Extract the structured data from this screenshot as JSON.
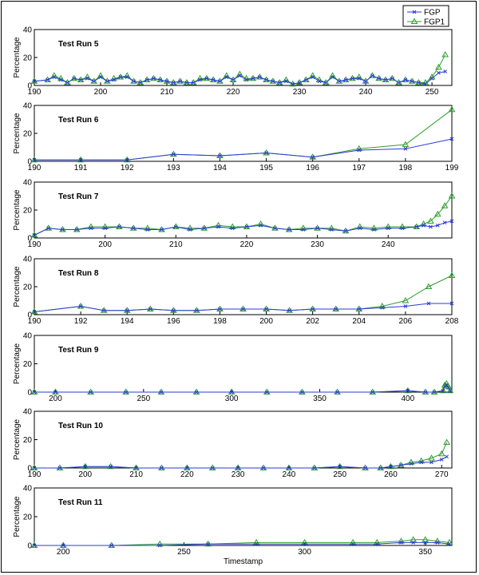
{
  "legend": {
    "items": [
      {
        "name": "FGP",
        "color": "#2b3bd6",
        "marker": "x"
      },
      {
        "name": "FGP1",
        "color": "#2f9e2f",
        "marker": "triangle"
      }
    ]
  },
  "chart_data": [
    {
      "type": "line",
      "title": "Test Run 5",
      "ylabel": "Percentage",
      "xlabel": "",
      "xlim": [
        190,
        253
      ],
      "ylim": [
        0,
        40
      ],
      "xticks": [
        190,
        200,
        210,
        220,
        230,
        240,
        250
      ],
      "yticks": [
        0,
        20,
        40
      ],
      "series": [
        {
          "name": "FGP",
          "x": [
            190,
            192,
            193,
            194,
            195,
            196,
            197,
            198,
            199,
            200,
            201,
            202,
            203,
            204,
            205,
            206,
            207,
            208,
            209,
            210,
            211,
            212,
            213,
            214,
            215,
            216,
            217,
            218,
            219,
            220,
            221,
            222,
            223,
            224,
            225,
            226,
            227,
            228,
            229,
            230,
            231,
            232,
            233,
            234,
            235,
            236,
            237,
            238,
            239,
            240,
            241,
            242,
            243,
            244,
            245,
            246,
            247,
            248,
            249,
            250,
            251,
            252
          ],
          "y": [
            3,
            4,
            6,
            4,
            2,
            5,
            4,
            5,
            3,
            6,
            3,
            4,
            6,
            6,
            3,
            2,
            4,
            5,
            4,
            3,
            2,
            3,
            2,
            2,
            4,
            5,
            4,
            3,
            6,
            4,
            7,
            4,
            5,
            6,
            4,
            3,
            2,
            3,
            1,
            2,
            4,
            6,
            3,
            2,
            6,
            3,
            4,
            5,
            5,
            3,
            7,
            5,
            4,
            5,
            2,
            4,
            3,
            2,
            1,
            5,
            9,
            10
          ]
        },
        {
          "name": "FGP1",
          "x": [
            190,
            192,
            193,
            194,
            195,
            196,
            197,
            198,
            199,
            200,
            201,
            202,
            203,
            204,
            205,
            206,
            207,
            208,
            209,
            210,
            211,
            212,
            213,
            214,
            215,
            216,
            217,
            218,
            219,
            220,
            221,
            222,
            223,
            224,
            225,
            226,
            227,
            228,
            229,
            230,
            231,
            232,
            233,
            234,
            235,
            236,
            237,
            238,
            239,
            240,
            241,
            242,
            243,
            244,
            245,
            246,
            247,
            248,
            249,
            250,
            251,
            252
          ],
          "y": [
            3,
            4,
            7,
            5,
            2,
            5,
            4,
            6,
            3,
            7,
            3,
            5,
            6,
            7,
            3,
            2,
            4,
            5,
            4,
            3,
            2,
            3,
            2,
            2,
            5,
            5,
            4,
            3,
            7,
            4,
            8,
            5,
            5,
            6,
            4,
            3,
            2,
            4,
            1,
            2,
            4,
            7,
            4,
            2,
            7,
            3,
            4,
            5,
            6,
            3,
            7,
            5,
            4,
            5,
            2,
            4,
            3,
            2,
            2,
            6,
            13,
            22
          ]
        }
      ]
    },
    {
      "type": "line",
      "title": "Test Run 6",
      "ylabel": "Percentage",
      "xlabel": "",
      "xlim": [
        190,
        199
      ],
      "ylim": [
        0,
        40
      ],
      "xticks": [
        190,
        191,
        192,
        193,
        194,
        195,
        196,
        197,
        198,
        199
      ],
      "yticks": [
        0,
        20,
        40
      ],
      "series": [
        {
          "name": "FGP",
          "x": [
            190,
            191,
            192,
            193,
            194,
            195,
            196,
            197,
            198,
            199
          ],
          "y": [
            1,
            1,
            1,
            5,
            4,
            6,
            3,
            8,
            9,
            16
          ]
        },
        {
          "name": "FGP1",
          "x": [
            190,
            191,
            192,
            193,
            194,
            195,
            196,
            197,
            198,
            199
          ],
          "y": [
            1,
            1,
            1,
            5,
            4,
            6,
            3,
            9,
            12,
            37
          ]
        }
      ]
    },
    {
      "type": "line",
      "title": "Test Run 7",
      "ylabel": "Percentage",
      "xlabel": "",
      "xlim": [
        190,
        249
      ],
      "ylim": [
        0,
        40
      ],
      "xticks": [
        190,
        200,
        210,
        220,
        230,
        240
      ],
      "yticks": [
        0,
        20,
        40
      ],
      "series": [
        {
          "name": "FGP",
          "x": [
            190,
            192,
            194,
            196,
            198,
            200,
            202,
            204,
            206,
            208,
            210,
            212,
            214,
            216,
            218,
            220,
            222,
            224,
            226,
            228,
            230,
            232,
            234,
            236,
            238,
            240,
            242,
            244,
            245,
            246,
            247,
            248,
            249
          ],
          "y": [
            2,
            7,
            6,
            6,
            7,
            7,
            8,
            7,
            6,
            6,
            8,
            6,
            7,
            8,
            7,
            8,
            9,
            7,
            6,
            6,
            7,
            6,
            5,
            7,
            6,
            7,
            7,
            8,
            9,
            8,
            9,
            11,
            12
          ]
        },
        {
          "name": "FGP1",
          "x": [
            190,
            192,
            194,
            196,
            198,
            200,
            202,
            204,
            206,
            208,
            210,
            212,
            214,
            216,
            218,
            220,
            222,
            224,
            226,
            228,
            230,
            232,
            234,
            236,
            238,
            240,
            242,
            244,
            245,
            246,
            247,
            248,
            249
          ],
          "y": [
            2,
            7,
            6,
            6,
            8,
            8,
            8,
            7,
            7,
            6,
            8,
            7,
            7,
            9,
            8,
            8,
            10,
            7,
            6,
            7,
            7,
            7,
            5,
            8,
            7,
            8,
            8,
            8,
            10,
            12,
            17,
            23,
            30
          ]
        }
      ]
    },
    {
      "type": "line",
      "title": "Test Run 8",
      "ylabel": "Percentage",
      "xlabel": "",
      "xlim": [
        190,
        208
      ],
      "ylim": [
        0,
        40
      ],
      "xticks": [
        190,
        192,
        194,
        196,
        198,
        200,
        202,
        204,
        206,
        208
      ],
      "yticks": [
        0,
        20,
        40
      ],
      "series": [
        {
          "name": "FGP",
          "x": [
            190,
            192,
            193,
            194,
            195,
            196,
            197,
            198,
            199,
            200,
            201,
            202,
            203,
            204,
            205,
            206,
            207,
            208
          ],
          "y": [
            2,
            6,
            3,
            3,
            4,
            3,
            3,
            4,
            4,
            4,
            3,
            4,
            4,
            4,
            5,
            6,
            8,
            8
          ]
        },
        {
          "name": "FGP1",
          "x": [
            190,
            192,
            193,
            194,
            195,
            196,
            197,
            198,
            199,
            200,
            201,
            202,
            203,
            204,
            205,
            206,
            207,
            208
          ],
          "y": [
            2,
            6,
            3,
            3,
            4,
            3,
            3,
            4,
            4,
            4,
            3,
            4,
            4,
            4,
            6,
            10,
            20,
            28
          ]
        }
      ]
    },
    {
      "type": "line",
      "title": "Test Run 9",
      "ylabel": "Percentage",
      "xlabel": "",
      "xlim": [
        188,
        425
      ],
      "ylim": [
        0,
        40
      ],
      "xticks": [
        200,
        250,
        300,
        350,
        400
      ],
      "yticks": [
        0,
        20,
        40
      ],
      "series": [
        {
          "name": "FGP",
          "x": [
            188,
            200,
            220,
            240,
            260,
            280,
            300,
            320,
            340,
            360,
            380,
            400,
            410,
            415,
            420,
            421,
            422,
            423,
            424
          ],
          "y": [
            0,
            0,
            0,
            0,
            0,
            0,
            0,
            0,
            0,
            0,
            0,
            1,
            0,
            0,
            1,
            4,
            5,
            3,
            1
          ]
        },
        {
          "name": "FGP1",
          "x": [
            188,
            200,
            220,
            240,
            260,
            280,
            300,
            320,
            340,
            360,
            380,
            400,
            410,
            415,
            420,
            421,
            422,
            423,
            424
          ],
          "y": [
            0,
            0,
            0,
            0,
            0,
            0,
            0,
            0,
            0,
            0,
            0,
            1,
            0,
            0,
            1,
            5,
            6,
            4,
            1
          ]
        }
      ]
    },
    {
      "type": "line",
      "title": "Test Run 10",
      "ylabel": "Percentage",
      "xlabel": "",
      "xlim": [
        190,
        272
      ],
      "ylim": [
        0,
        40
      ],
      "xticks": [
        190,
        200,
        210,
        220,
        230,
        240,
        250,
        260,
        270
      ],
      "yticks": [
        0,
        20,
        40
      ],
      "series": [
        {
          "name": "FGP",
          "x": [
            190,
            195,
            200,
            205,
            210,
            215,
            220,
            225,
            230,
            235,
            240,
            245,
            250,
            255,
            258,
            260,
            262,
            264,
            266,
            268,
            270,
            271
          ],
          "y": [
            0,
            0,
            1,
            1,
            0,
            0,
            0,
            0,
            0,
            0,
            0,
            0,
            1,
            0,
            0,
            1,
            2,
            3,
            4,
            4,
            6,
            8
          ]
        },
        {
          "name": "FGP1",
          "x": [
            190,
            195,
            200,
            205,
            210,
            215,
            220,
            225,
            230,
            235,
            240,
            245,
            250,
            255,
            258,
            260,
            262,
            264,
            266,
            268,
            270,
            271
          ],
          "y": [
            0,
            0,
            1,
            1,
            0,
            0,
            0,
            0,
            0,
            0,
            0,
            0,
            1,
            0,
            0,
            1,
            2,
            4,
            5,
            7,
            10,
            18
          ]
        }
      ]
    },
    {
      "type": "line",
      "title": "Test Run 11",
      "ylabel": "Percentage",
      "xlabel": "Timestamp",
      "xlim": [
        188,
        361
      ],
      "ylim": [
        0,
        40
      ],
      "xticks": [
        200,
        250,
        300,
        350
      ],
      "yticks": [
        0,
        20,
        40
      ],
      "series": [
        {
          "name": "FGP",
          "x": [
            188,
            200,
            220,
            240,
            260,
            280,
            300,
            320,
            330,
            340,
            345,
            350,
            355,
            360
          ],
          "y": [
            0,
            0,
            0,
            0,
            1,
            1,
            1,
            1,
            1,
            2,
            2,
            2,
            2,
            1
          ]
        },
        {
          "name": "FGP1",
          "x": [
            188,
            200,
            220,
            240,
            260,
            280,
            300,
            320,
            330,
            340,
            345,
            350,
            355,
            360
          ],
          "y": [
            0,
            0,
            0,
            1,
            1,
            2,
            2,
            2,
            2,
            3,
            4,
            4,
            3,
            2
          ]
        }
      ]
    }
  ]
}
